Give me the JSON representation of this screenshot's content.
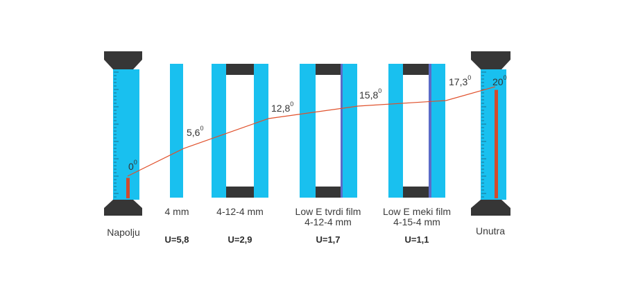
{
  "colors": {
    "glass": "#19c0ef",
    "spacer": "#363636",
    "film": "#5b6bc8",
    "line": "#e0502b",
    "mercury": "#d24a2c",
    "thermo_body": "#19c0ef",
    "thermo_cap": "#363636"
  },
  "thermometers": {
    "outside": {
      "label": "Napolju",
      "temp": "0",
      "sup": "0",
      "fill_fraction": 0.16
    },
    "inside": {
      "label": "Unutra",
      "temp": "20",
      "sup": "0",
      "fill_fraction": 0.85
    }
  },
  "glazing": [
    {
      "label_lines": [
        "4 mm"
      ],
      "u": "U=5,8"
    },
    {
      "label_lines": [
        "4-12-4 mm"
      ],
      "u": "U=2,9"
    },
    {
      "label_lines": [
        "Low E tvrdi film",
        "4-12-4 mm"
      ],
      "u": "U=1,7"
    },
    {
      "label_lines": [
        "Low E meki film",
        "4-15-4 mm"
      ],
      "u": "U=1,1"
    }
  ],
  "line_temps": [
    {
      "value": "5,6",
      "sup": "0"
    },
    {
      "value": "12,8",
      "sup": "0"
    },
    {
      "value": "15,8",
      "sup": "0"
    },
    {
      "value": "17,3",
      "sup": "0"
    }
  ]
}
